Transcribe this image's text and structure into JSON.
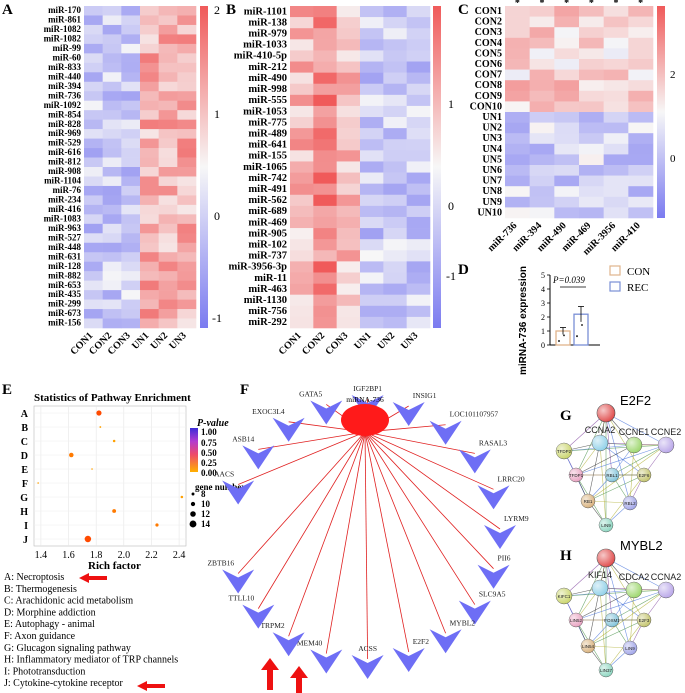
{
  "panel_letters": [
    "A",
    "B",
    "C",
    "D",
    "E",
    "F",
    "G",
    "H"
  ],
  "colors": {
    "low": "#7b7bf0",
    "mid": "#f7f7f7",
    "high": "#f05a5a",
    "con_box": "#e0b48c",
    "rec_box": "#7a8fd6",
    "arrow": "#ee1111",
    "edge": "#e02020",
    "node_hub": "#ff1a1a",
    "node_target": "#6e6ef5",
    "gene_bg": "#cfe8f5"
  },
  "panelA": {
    "rows": [
      "miR-170",
      "miR-861",
      "miR-1082",
      "miR-1082",
      "miR-99",
      "miR-60",
      "miR-833",
      "miR-440",
      "miR-394",
      "miR-736",
      "miR-1092",
      "miR-854",
      "miR-828",
      "miR-969",
      "miR-529",
      "miR-616",
      "miR-812",
      "miR-908",
      "miR-1104",
      "miR-76",
      "miR-234",
      "miR-416",
      "miR-1083",
      "miR-963",
      "miR-527",
      "miR-448",
      "miR-631",
      "miR-128",
      "miR-882",
      "miR-653",
      "miR-435",
      "miR-299",
      "miR-673",
      "miR-156"
    ],
    "cols": [
      "CON1",
      "CON2",
      "CON3",
      "UN1",
      "UN2",
      "UN3"
    ],
    "scale_ticks": [
      "2",
      "1",
      "0",
      "-1"
    ]
  },
  "panelB": {
    "rows": [
      "miR-1101",
      "miR-138",
      "miR-979",
      "miR-1033",
      "miR-410-5p",
      "miR-212",
      "miR-490",
      "miR-998",
      "miR-555",
      "miR-1053",
      "miR-775",
      "miR-489",
      "miR-641",
      "miR-155",
      "miR-1065",
      "miR-742",
      "miR-491",
      "miR-562",
      "miR-689",
      "miR-469",
      "miR-905",
      "miR-102",
      "miR-737",
      "miR-3956-3p",
      "miR-11",
      "miR-463",
      "miR-1130",
      "miR-756",
      "miR-292"
    ],
    "cols": [
      "CON1",
      "CON2",
      "CON3",
      "UN1",
      "UN2",
      "UN3"
    ],
    "scale_ticks": [
      "1",
      "0",
      "-1"
    ]
  },
  "panelC": {
    "rows": [
      "CON1",
      "CON2",
      "CON3",
      "CON4",
      "CON5",
      "CON6",
      "CON7",
      "CON8",
      "CON9",
      "CON10",
      "UN1",
      "UN2",
      "UN3",
      "UN4",
      "UN5",
      "UN6",
      "UN7",
      "UN8",
      "UN9",
      "UN10"
    ],
    "cols": [
      "miR-736",
      "miR-394",
      "miR-490",
      "miR-469",
      "miR-3956",
      "miR-410"
    ],
    "significance": [
      "*",
      "*",
      "*",
      "*",
      "*",
      "*"
    ],
    "scale_ticks": [
      "2",
      "0"
    ]
  },
  "panelD": {
    "ylabel": "miRNA-736 expression",
    "yticks": [
      "0",
      "1",
      "2",
      "3",
      "4",
      "5"
    ],
    "pvalue": "P=0.039",
    "legend": [
      "CON",
      "REC"
    ],
    "chart_data": {
      "type": "bar",
      "categories": [
        "CON",
        "REC"
      ],
      "values": [
        1.0,
        2.2
      ],
      "errors": [
        0.25,
        0.55
      ],
      "ylim": [
        0,
        5
      ]
    }
  },
  "panelE": {
    "title": "Statistics of Pathway Enrichment",
    "xlabel": "Rich factor",
    "legend_pvalue_title": "P-value",
    "pvalue_ticks": [
      "1.00",
      "0.75",
      "0.50",
      "0.25",
      "0.00"
    ],
    "legend_size_title": "gene number",
    "size_ticks": [
      "8",
      "10",
      "12",
      "14"
    ],
    "chart_data": {
      "type": "scatter",
      "categories": [
        "A",
        "B",
        "C",
        "D",
        "E",
        "F",
        "G",
        "H",
        "I",
        "J"
      ],
      "x": [
        1.82,
        1.83,
        1.93,
        1.62,
        1.77,
        1.38,
        2.42,
        1.93,
        2.24,
        1.74
      ],
      "gene_number": [
        12,
        7,
        8,
        11,
        6,
        6,
        8,
        10,
        9,
        14
      ],
      "pvalue": [
        0.02,
        0.1,
        0.08,
        0.05,
        0.1,
        0.12,
        0.07,
        0.05,
        0.04,
        0.01
      ],
      "xticks": [
        "1.4",
        "1.6",
        "1.8",
        "2.0",
        "2.2",
        "2.4"
      ],
      "xlim": [
        1.35,
        2.45
      ]
    },
    "pathways": [
      "A: Necroptosis",
      "B: Thermogenesis",
      "C: Arachidonic acid metabolism",
      "D: Morphine addiction",
      "E: Autophagy - animal",
      "F: Axon guidance",
      "G: Glucagon signaling pathway",
      "H: Inflammatory mediator of TRP channels",
      "I: Phototransduction",
      "J: Cytokine-cytokine receptor"
    ]
  },
  "panelF": {
    "hub": "miRNA-736",
    "targets": [
      "AACS",
      "ASB14",
      "EXOC3L4",
      "GATA5",
      "IGF2BP1",
      "INSIG1",
      "LOC101107957",
      "RASAL3",
      "LRRC20",
      "LYRM9",
      "PII6",
      "SLC9A5",
      "MYBL2",
      "E2F2",
      "ACSS",
      "TMEM40",
      "TRPM2",
      "TTLL10",
      "ZBTB16"
    ]
  },
  "panelG": {
    "title": "E2F2",
    "nodes": [
      "TFDP2",
      "CCNA2",
      "CCNE1",
      "CCNE2",
      "TFDP1",
      "RBL1",
      "E2F6",
      "RB1",
      "RBL2",
      "LIN9"
    ]
  },
  "panelH": {
    "title": "MYBL2",
    "nodes": [
      "KIFC1",
      "KIF14",
      "CDCA2",
      "CCNA2",
      "LIN52",
      "FOXM1",
      "E2F3",
      "LIN54",
      "LIN9",
      "LIN37"
    ]
  }
}
